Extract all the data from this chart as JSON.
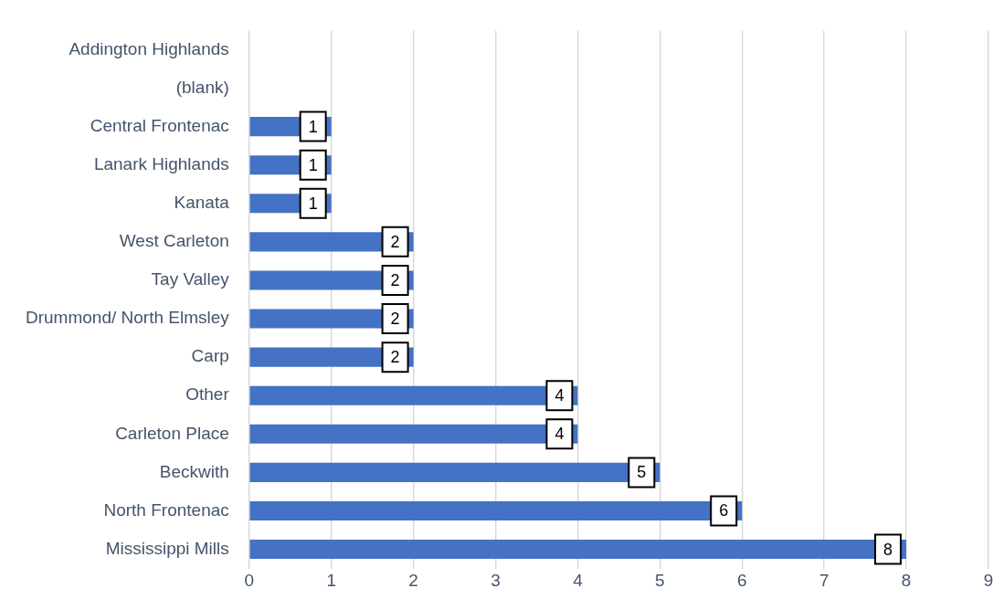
{
  "chart_data": {
    "type": "bar",
    "orientation": "horizontal",
    "categories": [
      "Addington Highlands",
      "(blank)",
      "Central Frontenac",
      "Lanark Highlands",
      "Kanata",
      "West Carleton",
      "Tay Valley",
      "Drummond/ North Elmsley",
      "Carp",
      "Other",
      "Carleton Place",
      "Beckwith",
      "North Frontenac",
      "Mississippi Mills"
    ],
    "values": [
      null,
      null,
      1,
      1,
      1,
      2,
      2,
      2,
      2,
      4,
      4,
      5,
      6,
      8
    ],
    "color": "#4472c4",
    "xlim": [
      0,
      9
    ],
    "xticks": [
      0,
      1,
      2,
      3,
      4,
      5,
      6,
      7,
      8,
      9
    ],
    "grid": "x",
    "data_labels": true,
    "legend": false
  }
}
